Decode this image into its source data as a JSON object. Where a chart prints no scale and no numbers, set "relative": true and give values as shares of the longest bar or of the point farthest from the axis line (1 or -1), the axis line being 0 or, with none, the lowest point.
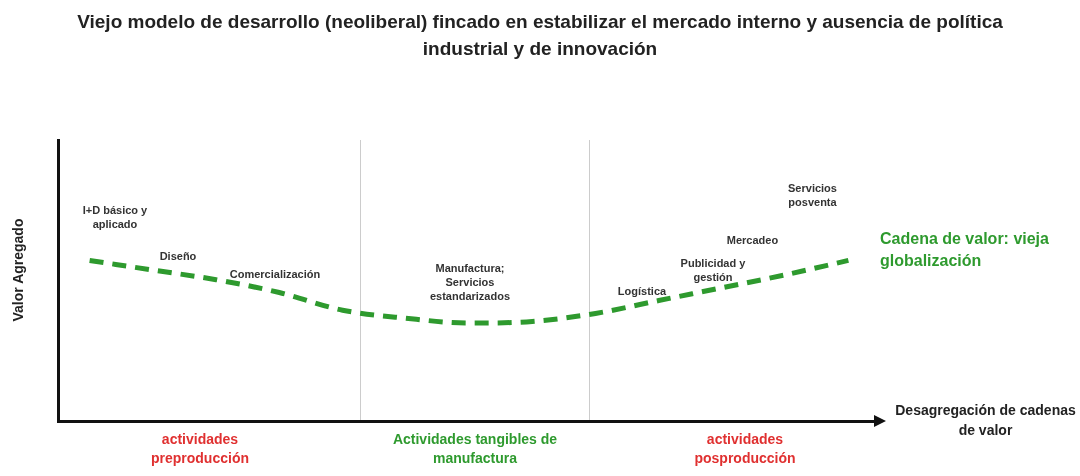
{
  "chart_data": {
    "type": "line",
    "relative": true,
    "title": "Viejo modelo de desarrollo (neoliberal) fincado en estabilizar el mercado interno y ausencia de política industrial y de innovación",
    "xlabel": "Desagregación de cadenas de valor",
    "ylabel": "Valor Agregado",
    "categories": [
      null,
      null,
      null,
      null,
      null,
      null,
      null,
      null,
      null,
      null,
      null,
      null,
      null
    ],
    "series": [
      {
        "name": "Cadena de valor: vieja globalización",
        "color": "#2e9a2e",
        "values": [
          1,
          0.94,
          0.88,
          0.8,
          0.69,
          0.64,
          0.61,
          0.62,
          0.67,
          0.75,
          0.83,
          0.91,
          1
        ]
      }
    ],
    "annotations": [
      "I+D básico y aplicado",
      "Diseño",
      "Comercialización",
      "Manufactura; Servicios estandarizados",
      "Logística",
      "Publicidad y gestión",
      "Mercadeo",
      "Servicios posventa",
      "actividades preproducción",
      "Actividades tangibles de manufactura",
      "actividades posproducción"
    ],
    "legend": false,
    "grid": false,
    "marker": "none",
    "line_style": "dashed"
  }
}
